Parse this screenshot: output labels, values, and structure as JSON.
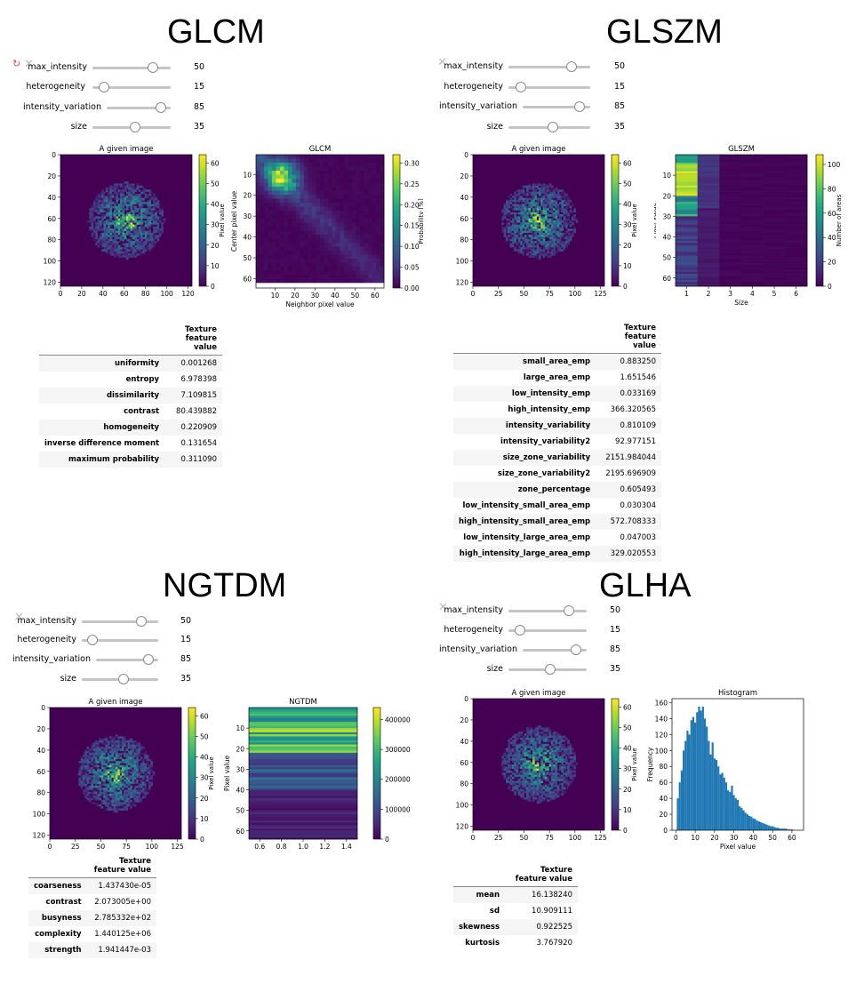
{
  "panels": {
    "glcm": {
      "title": "GLCM",
      "sliders": [
        {
          "label": "max_intensity",
          "value": "50"
        },
        {
          "label": "heterogeneity",
          "value": "15"
        },
        {
          "label": "intensity_variation",
          "value": "85"
        },
        {
          "label": "size",
          "value": "35"
        }
      ],
      "table": {
        "header": "Texture feature value",
        "rows": [
          {
            "name": "uniformity",
            "value": "0.001268"
          },
          {
            "name": "entropy",
            "value": "6.978398"
          },
          {
            "name": "dissimilarity",
            "value": "7.109815"
          },
          {
            "name": "contrast",
            "value": "80.439882"
          },
          {
            "name": "homogeneity",
            "value": "0.220909"
          },
          {
            "name": "inverse difference moment",
            "value": "0.131654"
          },
          {
            "name": "maximum probability",
            "value": "0.311090"
          }
        ]
      }
    },
    "glszm": {
      "title": "GLSZM",
      "sliders": [
        {
          "label": "max_intensity",
          "value": "50"
        },
        {
          "label": "heterogeneity",
          "value": "15"
        },
        {
          "label": "intensity_variation",
          "value": "85"
        },
        {
          "label": "size",
          "value": "35"
        }
      ],
      "table": {
        "header": "Texture feature value",
        "rows": [
          {
            "name": "small_area_emp",
            "value": "0.883250"
          },
          {
            "name": "large_area_emp",
            "value": "1.651546"
          },
          {
            "name": "low_intensity_emp",
            "value": "0.033169"
          },
          {
            "name": "high_intensity_emp",
            "value": "366.320565"
          },
          {
            "name": "intensity_variability",
            "value": "0.810109"
          },
          {
            "name": "intensity_variability2",
            "value": "92.977151"
          },
          {
            "name": "size_zone_variability",
            "value": "2151.984044"
          },
          {
            "name": "size_zone_variability2",
            "value": "2195.696909"
          },
          {
            "name": "zone_percentage",
            "value": "0.605493"
          },
          {
            "name": "low_intensity_small_area_emp",
            "value": "0.030304"
          },
          {
            "name": "high_intensity_small_area_emp",
            "value": "572.708333"
          },
          {
            "name": "low_intensity_large_area_emp",
            "value": "0.047003"
          },
          {
            "name": "high_intensity_large_area_emp",
            "value": "329.020553"
          }
        ]
      }
    },
    "ngtdm": {
      "title": "NGTDM",
      "sliders": [
        {
          "label": "max_intensity",
          "value": "50"
        },
        {
          "label": "heterogeneity",
          "value": "15"
        },
        {
          "label": "intensity_variation",
          "value": "85"
        },
        {
          "label": "size",
          "value": "35"
        }
      ],
      "table": {
        "header": "Texture feature value",
        "rows": [
          {
            "name": "coarseness",
            "value": "1.437430e-05"
          },
          {
            "name": "contrast",
            "value": "2.073005e+00"
          },
          {
            "name": "busyness",
            "value": "2.785332e+02"
          },
          {
            "name": "complexity",
            "value": "1.440125e+06"
          },
          {
            "name": "strength",
            "value": "1.941447e-03"
          }
        ]
      }
    },
    "glha": {
      "title": "GLHA",
      "sliders": [
        {
          "label": "max_intensity",
          "value": "50"
        },
        {
          "label": "heterogeneity",
          "value": "15"
        },
        {
          "label": "intensity_variation",
          "value": "85"
        },
        {
          "label": "size",
          "value": "35"
        }
      ],
      "table": {
        "header": "Texture feature value",
        "rows": [
          {
            "name": "mean",
            "value": "16.138240"
          },
          {
            "name": "sd",
            "value": "10.909111"
          },
          {
            "name": "skewness",
            "value": "0.922525"
          },
          {
            "name": "kurtosis",
            "value": "3.767920"
          }
        ]
      }
    }
  },
  "icons": {
    "close": "close-icon",
    "refresh": "refresh-icon"
  },
  "colors": {
    "viridis_low": "#440154",
    "viridis_mid": "#21918c",
    "viridis_high": "#fde725",
    "hist_bar": "#1f77b4"
  },
  "chart_data": [
    {
      "id": "glcm-image",
      "type": "heatmap",
      "title": "A given image",
      "xticks": [
        "0",
        "20",
        "40",
        "60",
        "80",
        "100",
        "120"
      ],
      "yticks": [
        "0",
        "20",
        "40",
        "60",
        "80",
        "100",
        "120"
      ],
      "colorbar": {
        "label": "Pixel value",
        "ticks": [
          "0",
          "10",
          "20",
          "30",
          "40",
          "50",
          "60"
        ]
      }
    },
    {
      "id": "glcm-matrix",
      "type": "heatmap",
      "title": "GLCM",
      "xlabel": "Neighbor pixel value",
      "ylabel": "Center pixel value",
      "xticks": [
        "10",
        "20",
        "30",
        "40",
        "50",
        "60"
      ],
      "yticks": [
        "10",
        "20",
        "30",
        "40",
        "50",
        "60"
      ],
      "colorbar": {
        "label": "Probability [%]",
        "ticks": [
          "0.00",
          "0.05",
          "0.10",
          "0.15",
          "0.20",
          "0.25",
          "0.30"
        ]
      }
    },
    {
      "id": "glszm-image",
      "type": "heatmap",
      "title": "A given image",
      "xticks": [
        "0",
        "25",
        "50",
        "75",
        "100",
        "125"
      ],
      "yticks": [
        "0",
        "20",
        "40",
        "60",
        "80",
        "100",
        "120"
      ],
      "colorbar": {
        "label": "Pixel value",
        "ticks": [
          "0",
          "10",
          "20",
          "30",
          "40",
          "50",
          "60"
        ]
      }
    },
    {
      "id": "glszm-matrix",
      "type": "heatmap",
      "title": "GLSZM",
      "xlabel": "Size",
      "ylabel": "Pixel value",
      "xticks": [
        "1",
        "2",
        "3",
        "4",
        "5",
        "6"
      ],
      "yticks": [
        "10",
        "20",
        "30",
        "40",
        "50",
        "60"
      ],
      "colorbar": {
        "label": "Number of areas",
        "ticks": [
          "0",
          "20",
          "40",
          "60",
          "80",
          "100"
        ]
      }
    },
    {
      "id": "ngtdm-image",
      "type": "heatmap",
      "title": "A given image",
      "xticks": [
        "0",
        "25",
        "50",
        "75",
        "100",
        "125"
      ],
      "yticks": [
        "0",
        "20",
        "40",
        "60",
        "80",
        "100",
        "120"
      ],
      "colorbar": {
        "label": "Pixel value",
        "ticks": [
          "0",
          "10",
          "20",
          "30",
          "40",
          "50",
          "60"
        ]
      }
    },
    {
      "id": "ngtdm-matrix",
      "type": "heatmap",
      "title": "NGTDM",
      "xlabel": "",
      "ylabel": "Pixel value",
      "xticks": [
        "0.6",
        "0.8",
        "1.0",
        "1.2",
        "1.4"
      ],
      "yticks": [
        "10",
        "20",
        "30",
        "40",
        "50",
        "60"
      ],
      "colorbar": {
        "label": "",
        "ticks": [
          "0",
          "100000",
          "200000",
          "300000",
          "400000"
        ]
      }
    },
    {
      "id": "glha-image",
      "type": "heatmap",
      "title": "A given image",
      "xticks": [
        "0",
        "25",
        "50",
        "75",
        "100",
        "125"
      ],
      "yticks": [
        "0",
        "20",
        "40",
        "60",
        "80",
        "100",
        "120"
      ],
      "colorbar": {
        "label": "Pixel value",
        "ticks": [
          "0",
          "10",
          "20",
          "30",
          "40",
          "50",
          "60"
        ]
      }
    },
    {
      "id": "glha-histogram",
      "type": "bar",
      "title": "Histogram",
      "xlabel": "Pixel value",
      "ylabel": "Frequency",
      "xlim": [
        -2,
        66
      ],
      "ylim": [
        0,
        165
      ],
      "xticks": [
        "0",
        "10",
        "20",
        "30",
        "40",
        "50",
        "60"
      ],
      "yticks": [
        "0",
        "20",
        "40",
        "60",
        "80",
        "100",
        "120",
        "140",
        "160"
      ],
      "x": [
        1,
        2,
        3,
        4,
        5,
        6,
        7,
        8,
        9,
        10,
        11,
        12,
        13,
        14,
        15,
        16,
        17,
        18,
        19,
        20,
        21,
        22,
        23,
        24,
        25,
        26,
        27,
        28,
        29,
        30,
        31,
        32,
        33,
        34,
        35,
        36,
        37,
        38,
        39,
        40,
        41,
        42,
        43,
        44,
        45,
        46,
        47,
        48,
        49,
        50,
        51,
        52,
        53,
        54,
        55,
        56,
        57,
        58,
        59,
        60
      ],
      "values": [
        40,
        60,
        75,
        100,
        112,
        125,
        120,
        138,
        142,
        135,
        148,
        155,
        150,
        155,
        140,
        130,
        112,
        95,
        110,
        90,
        88,
        80,
        70,
        72,
        66,
        60,
        50,
        48,
        56,
        44,
        40,
        38,
        30,
        28,
        25,
        22,
        20,
        18,
        17,
        15,
        14,
        12,
        11,
        10,
        9,
        8,
        7,
        6,
        5,
        5,
        4,
        3,
        3,
        2,
        2,
        2,
        2,
        1,
        1,
        1
      ]
    }
  ]
}
